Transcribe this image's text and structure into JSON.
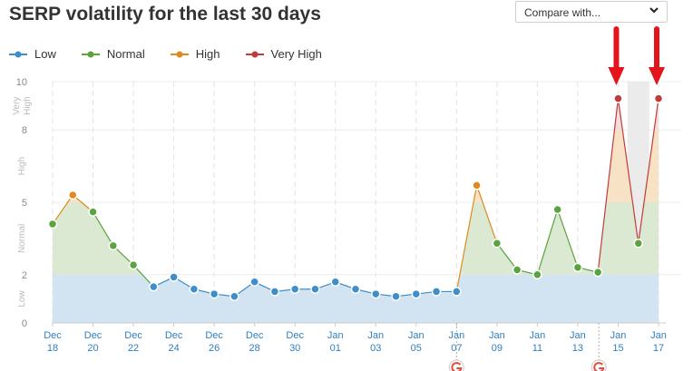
{
  "title": "SERP volatility for the last 30 days",
  "compare": {
    "label": "Compare with..."
  },
  "legend": [
    {
      "label": "Low",
      "color": "#3d8ec9"
    },
    {
      "label": "Normal",
      "color": "#5aa33e"
    },
    {
      "label": "High",
      "color": "#e08a1e"
    },
    {
      "label": "Very High",
      "color": "#c23b3b"
    }
  ],
  "chart_data": {
    "type": "line",
    "title": "SERP volatility for the last 30 days",
    "ylim": [
      0,
      10
    ],
    "yticks": [
      "0",
      "2",
      "5",
      "8",
      "10"
    ],
    "bands": [
      "Low",
      "Normal",
      "High",
      "Very High"
    ],
    "xticks": [
      {
        "l1": "Dec",
        "l2": "18"
      },
      {
        "l1": "Dec",
        "l2": "20"
      },
      {
        "l1": "Dec",
        "l2": "22"
      },
      {
        "l1": "Dec",
        "l2": "24"
      },
      {
        "l1": "Dec",
        "l2": "26"
      },
      {
        "l1": "Dec",
        "l2": "28"
      },
      {
        "l1": "Dec",
        "l2": "30"
      },
      {
        "l1": "Jan",
        "l2": "01"
      },
      {
        "l1": "Jan",
        "l2": "03"
      },
      {
        "l1": "Jan",
        "l2": "05"
      },
      {
        "l1": "Jan",
        "l2": "07"
      },
      {
        "l1": "Jan",
        "l2": "09"
      },
      {
        "l1": "Jan",
        "l2": "11"
      },
      {
        "l1": "Jan",
        "l2": "13"
      },
      {
        "l1": "Jan",
        "l2": "15"
      },
      {
        "l1": "Jan",
        "l2": "17"
      }
    ],
    "values": [
      4.1,
      5.3,
      4.6,
      3.2,
      2.4,
      1.5,
      1.9,
      1.4,
      1.2,
      1.1,
      1.7,
      1.3,
      1.4,
      1.4,
      1.7,
      1.4,
      1.2,
      1.1,
      1.2,
      1.3,
      1.3,
      5.7,
      3.3,
      2.2,
      2.0,
      4.7,
      2.3,
      2.1,
      9.3,
      3.3,
      9.3
    ],
    "annotations": [
      "red-arrow",
      "red-arrow"
    ],
    "google_updates": 2
  }
}
